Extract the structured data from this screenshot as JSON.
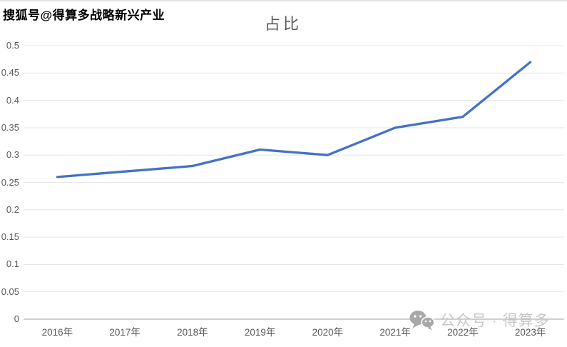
{
  "watermarks": {
    "top": "搜狐号@得算多战略新兴产业",
    "bottom_text": "公众号 · 得算多"
  },
  "chart_data": {
    "type": "line",
    "title": "占比",
    "categories": [
      "2016年",
      "2017年",
      "2018年",
      "2019年",
      "2020年",
      "2021年",
      "2022年",
      "2023年"
    ],
    "values": [
      0.26,
      0.27,
      0.28,
      0.31,
      0.3,
      0.35,
      0.37,
      0.47
    ],
    "xlabel": "",
    "ylabel": "",
    "ylim": [
      0,
      0.5
    ],
    "y_ticks": [
      {
        "value": 0,
        "label": "0"
      },
      {
        "value": 0.05,
        "label": "0.05"
      },
      {
        "value": 0.1,
        "label": "0.1"
      },
      {
        "value": 0.15,
        "label": "0.15"
      },
      {
        "value": 0.2,
        "label": "0.2"
      },
      {
        "value": 0.25,
        "label": "0.25"
      },
      {
        "value": 0.3,
        "label": "0.3"
      },
      {
        "value": 0.35,
        "label": "0.35"
      },
      {
        "value": 0.4,
        "label": "0.4"
      },
      {
        "value": 0.45,
        "label": "0.45"
      },
      {
        "value": 0.5,
        "label": "0.5"
      }
    ],
    "grid": true,
    "legend": "none",
    "colors": {
      "line": "#4472C4",
      "gridline": "#e7e7e7",
      "axis_line": "#bfbfbf",
      "title_text": "#595959",
      "tick_text": "#595959",
      "watermark_gray": "#c7c7c7",
      "wechat_icon_gray": "#a8a8a8"
    }
  }
}
